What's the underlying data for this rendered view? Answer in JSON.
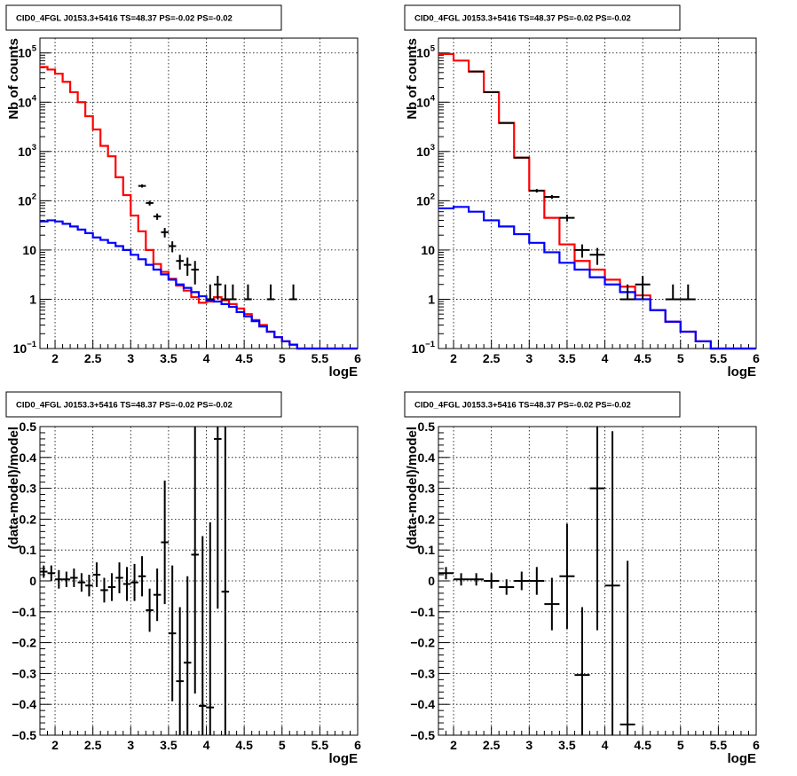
{
  "chart_data": [
    {
      "type": "line",
      "title": "CID0_4FGL J0153.3+5416 TS=48.37 PS=-0.02 PS=-0.02",
      "xlabel": "logE",
      "ylabel": "Nb of counts",
      "log_y": true,
      "xlim": [
        1.8,
        6.0
      ],
      "ylim": [
        0.1,
        200000
      ],
      "x_ticks": [
        "2",
        "2.5",
        "3",
        "3.5",
        "4",
        "4.5",
        "5",
        "5.5",
        "6"
      ],
      "grid": true,
      "bin_width": 0.1,
      "series": [
        {
          "color": "#ff0000",
          "kind": "step",
          "x": [
            1.85,
            1.95,
            2.05,
            2.15,
            2.25,
            2.35,
            2.45,
            2.55,
            2.65,
            2.75,
            2.85,
            2.95,
            3.05,
            3.15,
            3.25,
            3.35,
            3.45,
            3.55,
            3.65,
            3.75,
            3.85,
            3.95,
            4.05,
            4.15,
            4.25,
            4.35,
            4.45,
            4.55,
            4.65,
            4.75,
            4.85,
            4.95,
            5.05,
            5.15,
            5.25,
            5.35,
            5.45,
            5.55,
            5.65,
            5.75,
            5.85,
            5.95
          ],
          "values": [
            52000,
            46000,
            38000,
            26000,
            16000,
            10000,
            5200,
            2800,
            1300,
            800,
            300,
            130,
            50,
            24,
            10,
            5.2,
            3.6,
            2.6,
            1.9,
            1.5,
            1.1,
            0.85,
            0.9,
            1.1,
            0.95,
            0.8,
            0.65,
            0.5,
            0.38,
            0.3,
            0.22,
            0.17,
            0.14,
            0.12,
            0.1,
            0.1,
            0.1,
            0.1,
            0.1,
            0.1,
            0.1,
            0.1
          ]
        },
        {
          "color": "#0000ff",
          "kind": "step",
          "x": [
            1.85,
            1.95,
            2.05,
            2.15,
            2.25,
            2.35,
            2.45,
            2.55,
            2.65,
            2.75,
            2.85,
            2.95,
            3.05,
            3.15,
            3.25,
            3.35,
            3.45,
            3.55,
            3.65,
            3.75,
            3.85,
            3.95,
            4.05,
            4.15,
            4.25,
            4.35,
            4.45,
            4.55,
            4.65,
            4.75,
            4.85,
            4.95,
            5.05,
            5.15,
            5.25,
            5.35,
            5.45,
            5.55,
            5.65,
            5.75,
            5.85,
            5.95
          ],
          "values": [
            38,
            40,
            38,
            34,
            30,
            26,
            22,
            18,
            16,
            14,
            12,
            10,
            8,
            6.5,
            5,
            4,
            3.2,
            2.5,
            2,
            1.7,
            1.4,
            1.15,
            0.95,
            0.9,
            0.8,
            0.7,
            0.55,
            0.45,
            0.36,
            0.28,
            0.22,
            0.17,
            0.14,
            0.12,
            0.1,
            0.1,
            0.1,
            0.1,
            0.1,
            0.1,
            0.1,
            0.1
          ]
        },
        {
          "color": "#000000",
          "kind": "points",
          "x": [
            3.15,
            3.25,
            3.35,
            3.45,
            3.55,
            3.65,
            3.75,
            3.85,
            4.05,
            4.15,
            4.25,
            4.35,
            4.55,
            4.85,
            5.15
          ],
          "values": [
            200,
            90,
            48,
            23,
            12,
            6,
            5,
            4,
            1,
            2,
            1,
            1,
            1,
            1,
            1
          ],
          "yerr_low": [
            185,
            80,
            41,
            18,
            9,
            4,
            3,
            2,
            1,
            1,
            1,
            1,
            1,
            1,
            1
          ],
          "yerr_high": [
            215,
            100,
            55,
            28,
            15,
            8,
            7,
            6,
            2,
            3,
            2,
            2,
            2,
            2,
            2
          ]
        }
      ]
    },
    {
      "type": "line",
      "title": "CID0_4FGL J0153.3+5416 TS=48.37 PS=-0.02 PS=-0.02",
      "xlabel": "logE",
      "ylabel": "Nb of counts",
      "log_y": true,
      "xlim": [
        1.8,
        6.0
      ],
      "ylim": [
        0.1,
        200000
      ],
      "x_ticks": [
        "2",
        "2.5",
        "3",
        "3.5",
        "4",
        "4.5",
        "5",
        "5.5",
        "6"
      ],
      "grid": true,
      "bin_width": 0.2,
      "series": [
        {
          "color": "#ff0000",
          "kind": "step",
          "x": [
            1.9,
            2.1,
            2.3,
            2.5,
            2.7,
            2.9,
            3.1,
            3.3,
            3.5,
            3.7,
            3.9,
            4.1,
            4.3,
            4.5,
            4.7,
            4.9,
            5.1,
            5.3,
            5.5,
            5.7,
            5.9
          ],
          "values": [
            95000,
            70000,
            42000,
            16000,
            3800,
            750,
            160,
            45,
            13,
            6,
            4,
            2.5,
            1.8,
            1.2,
            0.6,
            0.35,
            0.22,
            0.14,
            0.1,
            0.1,
            0.1
          ]
        },
        {
          "color": "#0000ff",
          "kind": "step",
          "x": [
            1.9,
            2.1,
            2.3,
            2.5,
            2.7,
            2.9,
            3.1,
            3.3,
            3.5,
            3.7,
            3.9,
            4.1,
            4.3,
            4.5,
            4.7,
            4.9,
            5.1,
            5.3,
            5.5,
            5.7,
            5.9
          ],
          "values": [
            70,
            75,
            60,
            40,
            30,
            21,
            14,
            9,
            5.5,
            4,
            2.8,
            2,
            1.4,
            1,
            0.6,
            0.35,
            0.22,
            0.14,
            0.1,
            0.1,
            0.1
          ]
        },
        {
          "color": "#000000",
          "kind": "points",
          "x": [
            2.3,
            2.5,
            2.7,
            2.9,
            3.1,
            3.3,
            3.5,
            3.7,
            3.9,
            4.3,
            4.5,
            4.9,
            5.1
          ],
          "values": [
            42000,
            16000,
            3800,
            750,
            160,
            120,
            45,
            10,
            8,
            1,
            2,
            1,
            1
          ],
          "yerr_low": [
            41800,
            15900,
            3740,
            722,
            147,
            109,
            38,
            7,
            5,
            1,
            1,
            1,
            1
          ],
          "yerr_high": [
            42200,
            16100,
            3860,
            778,
            173,
            131,
            52,
            13,
            11,
            2,
            3,
            2,
            2
          ]
        }
      ]
    },
    {
      "type": "scatter",
      "title": "CID0_4FGL J0153.3+5416 TS=48.37 PS=-0.02 PS=-0.02",
      "xlabel": "logE",
      "ylabel": "(data-model)/model",
      "xlim": [
        1.8,
        6.0
      ],
      "ylim": [
        -0.5,
        0.5
      ],
      "x_ticks": [
        "2",
        "2.5",
        "3",
        "3.5",
        "4",
        "4.5",
        "5",
        "5.5",
        "6"
      ],
      "y_ticks": [
        "-0.5",
        "-0.4",
        "-0.3",
        "-0.2",
        "-0.1",
        "0",
        "0.1",
        "0.2",
        "0.3",
        "0.4",
        "0.5"
      ],
      "grid": true,
      "bin_width": 0.1,
      "series": [
        {
          "color": "#000000",
          "kind": "points",
          "x": [
            1.85,
            1.95,
            2.05,
            2.15,
            2.25,
            2.35,
            2.45,
            2.55,
            2.65,
            2.75,
            2.85,
            2.95,
            3.05,
            3.15,
            3.25,
            3.35,
            3.45,
            3.55,
            3.65,
            3.75,
            3.85,
            3.95,
            4.05,
            4.15,
            4.25
          ],
          "values": [
            0.03,
            0.025,
            0.005,
            0.005,
            0.01,
            -0.005,
            -0.015,
            0.02,
            -0.03,
            -0.02,
            0.01,
            -0.01,
            -0.005,
            0.015,
            -0.095,
            -0.045,
            0.125,
            -0.17,
            -0.325,
            -0.265,
            0.085,
            -0.405,
            -0.41,
            0.46,
            -0.035
          ],
          "yerr": [
            0.02,
            0.025,
            0.03,
            0.025,
            0.03,
            0.03,
            0.035,
            0.04,
            0.04,
            0.045,
            0.05,
            0.055,
            0.06,
            0.065,
            0.07,
            0.085,
            0.2,
            0.22,
            0.24,
            0.28,
            0.45,
            0.55,
            0.6,
            0.55,
            0.55
          ]
        }
      ]
    },
    {
      "type": "scatter",
      "title": "CID0_4FGL J0153.3+5416 TS=48.37 PS=-0.02 PS=-0.02",
      "xlabel": "logE",
      "ylabel": "(data-model)/model",
      "xlim": [
        1.8,
        6.0
      ],
      "ylim": [
        -0.5,
        0.5
      ],
      "x_ticks": [
        "2",
        "2.5",
        "3",
        "3.5",
        "4",
        "4.5",
        "5",
        "5.5",
        "6"
      ],
      "y_ticks": [
        "-0.5",
        "-0.4",
        "-0.3",
        "-0.2",
        "-0.1",
        "0",
        "0.1",
        "0.2",
        "0.3",
        "0.4",
        "0.5"
      ],
      "grid": true,
      "bin_width": 0.2,
      "series": [
        {
          "color": "#000000",
          "kind": "points",
          "x": [
            1.9,
            2.1,
            2.3,
            2.5,
            2.7,
            2.9,
            3.1,
            3.3,
            3.5,
            3.7,
            3.9,
            4.1,
            4.3
          ],
          "values": [
            0.025,
            0.005,
            0.005,
            0.0,
            -0.02,
            0.0,
            0.0,
            -0.075,
            0.015,
            -0.305,
            0.3,
            -0.015,
            -0.465
          ],
          "yerr": [
            0.02,
            0.02,
            0.02,
            0.025,
            0.025,
            0.03,
            0.045,
            0.085,
            0.17,
            0.22,
            0.46,
            0.5,
            0.53
          ]
        }
      ]
    }
  ]
}
